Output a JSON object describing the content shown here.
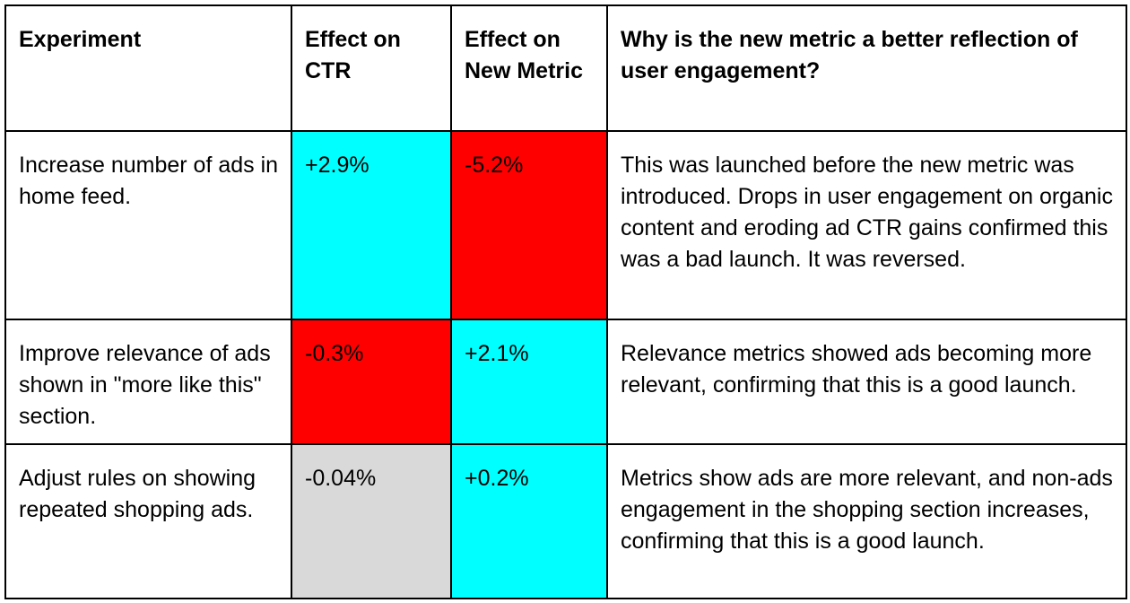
{
  "headers": {
    "experiment": "Experiment",
    "effect_ctr": "Effect on CTR",
    "effect_new_metric": "Effect on New Metric",
    "why": "Why is the new metric a better reflection of user engagement?"
  },
  "rows": [
    {
      "experiment": "Increase number of ads in home feed.",
      "ctr": "+2.9%",
      "new_metric": "-5.2%",
      "why": "This was launched before the new metric was introduced. Drops in user engagement on organic content and eroding ad CTR gains confirmed this was a bad launch. It was reversed."
    },
    {
      "experiment": "Improve relevance of ads shown in \"more like this\" section.",
      "ctr": "-0.3%",
      "new_metric": "+2.1%",
      "why": "Relevance metrics showed ads becoming more relevant, confirming that this is a good launch."
    },
    {
      "experiment": "Adjust rules on showing repeated shopping ads.",
      "ctr": "-0.04%",
      "new_metric": "+0.2%",
      "why": "Metrics show ads are more relevant, and non-ads engagement in the shopping section increases, confirming that this is a good launch."
    }
  ],
  "colors": {
    "positive": "#00ffff",
    "negative": "#ff0000",
    "neutral": "#d9d9d9",
    "border": "#000000"
  }
}
